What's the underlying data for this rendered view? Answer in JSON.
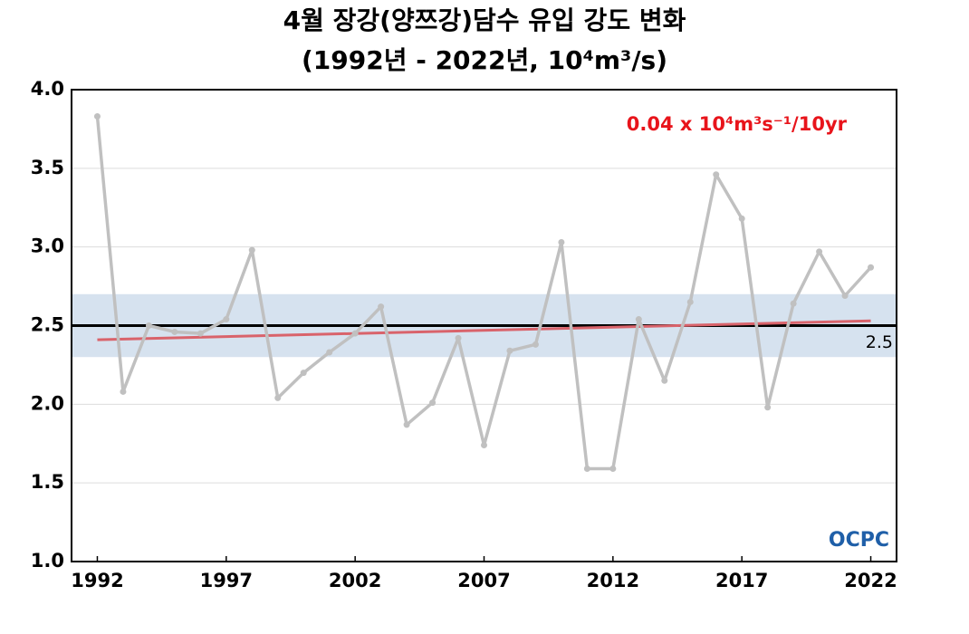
{
  "chart_data": {
    "type": "line",
    "title": "4월 장강(양쯔강)담수 유입 강도 변화",
    "subtitle": "(1992년 - 2022년, 10⁴m³/s)",
    "x": [
      1992,
      1993,
      1994,
      1995,
      1996,
      1997,
      1998,
      1999,
      2000,
      2001,
      2002,
      2003,
      2004,
      2005,
      2006,
      2007,
      2008,
      2009,
      2010,
      2011,
      2012,
      2013,
      2014,
      2015,
      2016,
      2017,
      2018,
      2019,
      2020,
      2021,
      2022
    ],
    "series": [
      {
        "color": "#c0c0c0",
        "values": [
          3.83,
          2.08,
          2.5,
          2.46,
          2.45,
          2.54,
          2.98,
          2.04,
          2.2,
          2.33,
          2.45,
          2.62,
          1.87,
          2.01,
          2.42,
          1.74,
          2.34,
          2.38,
          3.03,
          1.59,
          1.59,
          2.54,
          2.15,
          2.65,
          3.46,
          3.18,
          1.98,
          2.64,
          2.97,
          2.69,
          2.87
        ]
      }
    ],
    "xlim": [
      1991,
      2023
    ],
    "xticks": [
      1992,
      1997,
      2002,
      2007,
      2012,
      2017,
      2022
    ],
    "ylim": [
      1.0,
      4.0
    ],
    "yticks": [
      {
        "value": 1,
        "label": "1.0"
      },
      1.5,
      {
        "value": 2,
        "label": "2.0"
      },
      2.5,
      {
        "value": 3,
        "label": "3.0"
      },
      3.5,
      {
        "value": 4,
        "label": "4.0"
      }
    ],
    "grid": true,
    "band": [
      2.3,
      2.7
    ],
    "band_color": "#d6e2ef",
    "reference_line": 2.5,
    "trend": {
      "x": [
        1992,
        2022
      ],
      "values": [
        2.41,
        2.53
      ],
      "color": "#d9636b",
      "label": "0.04 x 10⁴m³s⁻¹/10yr",
      "label_color": "#e8141b"
    },
    "logo": "OCPC"
  }
}
